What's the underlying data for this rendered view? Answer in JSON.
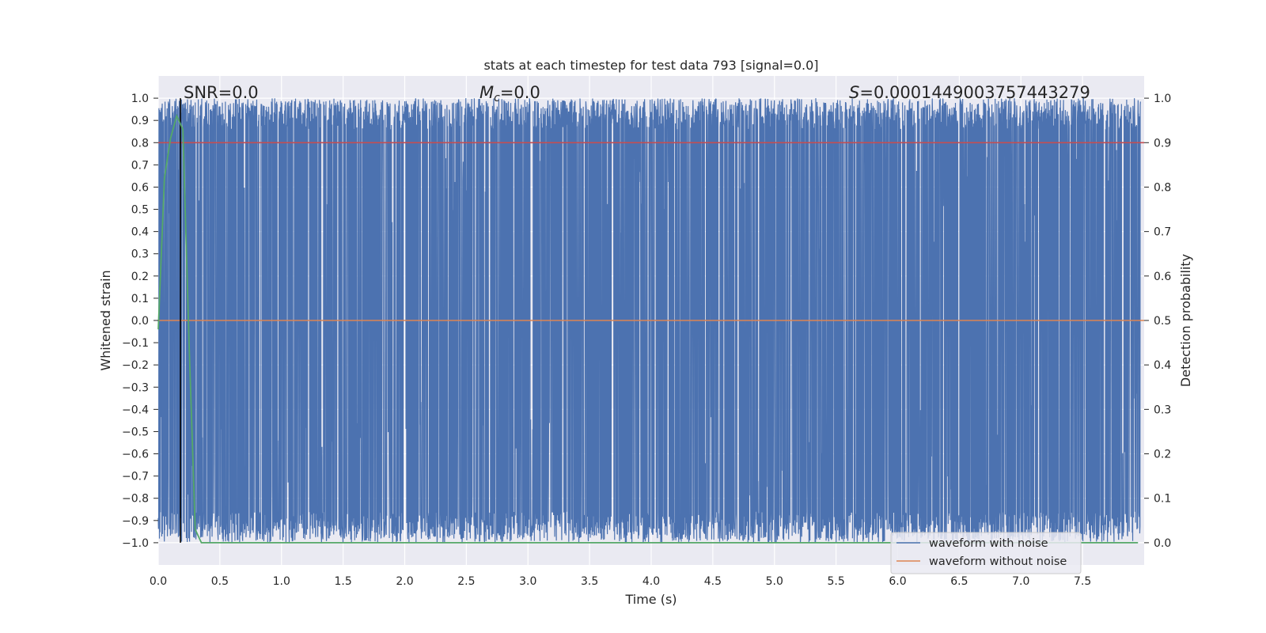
{
  "chart_data": {
    "type": "line",
    "title": "stats at each timestep for test data 793 [signal=0.0]",
    "xlabel": "Time (s)",
    "ylabel": "Whitened strain",
    "y2label": "Detection probability",
    "xlim": [
      0,
      8.0
    ],
    "ylim": [
      -1.1,
      1.1
    ],
    "y2lim": [
      -0.05,
      1.05
    ],
    "xticks": [
      "0.0",
      "0.5",
      "1.0",
      "1.5",
      "2.0",
      "2.5",
      "3.0",
      "3.5",
      "4.0",
      "4.5",
      "5.0",
      "5.5",
      "6.0",
      "6.5",
      "7.0",
      "7.5"
    ],
    "yticks": [
      "1.0",
      "0.9",
      "0.8",
      "0.7",
      "0.6",
      "0.5",
      "0.4",
      "0.3",
      "0.2",
      "0.1",
      "0.0",
      "−0.1",
      "−0.2",
      "−0.3",
      "−0.4",
      "−0.5",
      "−0.6",
      "−0.7",
      "−0.8",
      "−0.9",
      "−1.0"
    ],
    "y2ticks": [
      "1.0",
      "0.9",
      "0.8",
      "0.7",
      "0.6",
      "0.5",
      "0.4",
      "0.3",
      "0.2",
      "0.1",
      "0.0"
    ],
    "annotations": {
      "snr_label": "SNR=0.0",
      "mc_symbol": "M",
      "mc_subscript": "c",
      "mc_value": "=0.0",
      "s_symbol": "S",
      "s_value": "=0.0001449003757443279"
    },
    "grid": true,
    "legend_position": "bottom-right",
    "series": [
      {
        "name": "waveform with noise",
        "axis": "left",
        "color": "#4c72b0",
        "description": "dense whitened noise spanning approximately -1.0 to 1.0 over 0–8 s"
      },
      {
        "name": "waveform without noise",
        "axis": "left",
        "color": "#dd8452",
        "x": [
          0,
          8.0
        ],
        "y": [
          0.0,
          0.0
        ]
      },
      {
        "axis": "right",
        "color": "#55a868",
        "x": [
          0.0,
          0.05,
          0.1,
          0.15,
          0.2,
          0.25,
          0.3,
          0.35,
          0.4,
          1.0,
          2.0,
          3.0,
          4.0,
          5.0,
          6.0,
          7.0,
          7.95
        ],
        "y": [
          0.48,
          0.82,
          0.91,
          0.96,
          0.93,
          0.45,
          0.03,
          0.0,
          0.0,
          0.0,
          0.0,
          0.0,
          0.0,
          0.0,
          0.0,
          0.0,
          0.0
        ]
      }
    ],
    "threshold_line": {
      "axis": "right",
      "value": 0.9,
      "color": "#c44e52"
    },
    "marker_line": {
      "x": 0.18,
      "color": "#000000"
    }
  },
  "legend": {
    "entries": [
      {
        "label": "waveform with noise",
        "color": "#4c72b0"
      },
      {
        "label": "waveform without noise",
        "color": "#dd8452"
      }
    ]
  }
}
